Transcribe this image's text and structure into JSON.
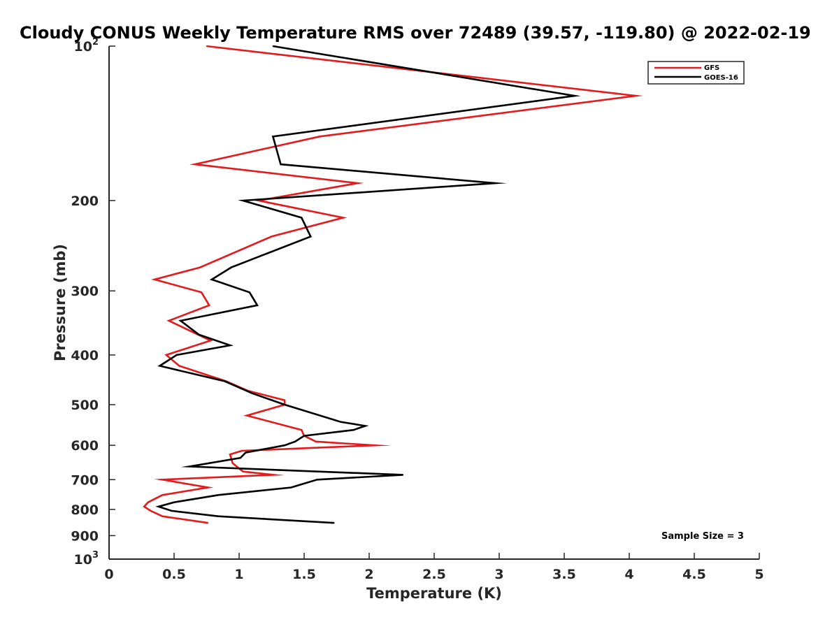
{
  "chart_data": {
    "type": "line",
    "title": "Cloudy CONUS Weekly Temperature RMS over 72489 (39.57, -119.80) @ 2022-02-19",
    "xlabel": "Temperature (K)",
    "ylabel": "Pressure (mb)",
    "xlim": [
      0,
      5
    ],
    "ylim": [
      100,
      1000
    ],
    "yscale": "log",
    "y_reversed": true,
    "grid": false,
    "legend_position": "top-right",
    "x_ticks": [
      "0",
      "0.5",
      "1",
      "1.5",
      "2",
      "2.5",
      "3",
      "3.5",
      "4",
      "4.5",
      "5"
    ],
    "x_tick_values": [
      0,
      0.5,
      1,
      1.5,
      2,
      2.5,
      3,
      3.5,
      4,
      4.5,
      5
    ],
    "y_ticks": [
      {
        "value": 100,
        "base": "10",
        "exp": "2"
      },
      {
        "value": 200,
        "base": "200",
        "exp": ""
      },
      {
        "value": 300,
        "base": "300",
        "exp": ""
      },
      {
        "value": 400,
        "base": "400",
        "exp": ""
      },
      {
        "value": 500,
        "base": "500",
        "exp": ""
      },
      {
        "value": 600,
        "base": "600",
        "exp": ""
      },
      {
        "value": 700,
        "base": "700",
        "exp": ""
      },
      {
        "value": 800,
        "base": "800",
        "exp": ""
      },
      {
        "value": 900,
        "base": "900",
        "exp": ""
      },
      {
        "value": 1000,
        "base": "10",
        "exp": "3"
      }
    ],
    "series": [
      {
        "name": "GFS",
        "color": "#e41a1c",
        "points": [
          [
            0.75,
            100
          ],
          [
            4.05,
            125
          ],
          [
            1.62,
            150
          ],
          [
            0.66,
            170
          ],
          [
            1.91,
            185
          ],
          [
            1.15,
            200
          ],
          [
            1.8,
            216
          ],
          [
            1.25,
            235
          ],
          [
            0.7,
            270
          ],
          [
            0.35,
            285
          ],
          [
            0.71,
            302
          ],
          [
            0.77,
            320
          ],
          [
            0.46,
            343
          ],
          [
            0.78,
            375
          ],
          [
            0.44,
            400
          ],
          [
            0.54,
            420
          ],
          [
            0.9,
            450
          ],
          [
            1.07,
            470
          ],
          [
            1.35,
            490
          ],
          [
            1.35,
            500
          ],
          [
            1.06,
            525
          ],
          [
            1.48,
            560
          ],
          [
            1.5,
            575
          ],
          [
            1.59,
            590
          ],
          [
            2.04,
            600
          ],
          [
            1.02,
            615
          ],
          [
            0.93,
            625
          ],
          [
            0.95,
            650
          ],
          [
            1.03,
            675
          ],
          [
            1.26,
            685
          ],
          [
            0.41,
            700
          ],
          [
            0.76,
            725
          ],
          [
            0.41,
            750
          ],
          [
            0.3,
            775
          ],
          [
            0.27,
            790
          ],
          [
            0.32,
            805
          ],
          [
            0.41,
            825
          ],
          [
            0.76,
            850
          ]
        ]
      },
      {
        "name": "GOES-16",
        "color": "#000000",
        "points": [
          [
            1.26,
            100
          ],
          [
            3.58,
            125
          ],
          [
            1.26,
            150
          ],
          [
            1.32,
            170
          ],
          [
            2.97,
            185
          ],
          [
            1.03,
            200
          ],
          [
            1.48,
            216
          ],
          [
            1.55,
            235
          ],
          [
            0.94,
            270
          ],
          [
            0.79,
            285
          ],
          [
            1.08,
            302
          ],
          [
            1.14,
            320
          ],
          [
            0.55,
            343
          ],
          [
            0.69,
            365
          ],
          [
            0.93,
            383
          ],
          [
            0.52,
            400
          ],
          [
            0.39,
            420
          ],
          [
            0.89,
            450
          ],
          [
            1.1,
            475
          ],
          [
            1.35,
            500
          ],
          [
            1.78,
            540
          ],
          [
            1.97,
            550
          ],
          [
            1.88,
            560
          ],
          [
            1.5,
            575
          ],
          [
            1.43,
            590
          ],
          [
            1.35,
            600
          ],
          [
            1.05,
            620
          ],
          [
            1.01,
            635
          ],
          [
            0.62,
            660
          ],
          [
            2.26,
            685
          ],
          [
            1.6,
            700
          ],
          [
            1.4,
            725
          ],
          [
            0.84,
            750
          ],
          [
            0.5,
            775
          ],
          [
            0.38,
            790
          ],
          [
            0.48,
            805
          ],
          [
            0.84,
            825
          ],
          [
            1.73,
            850
          ]
        ]
      }
    ],
    "annotation": "Sample Size = 3"
  }
}
